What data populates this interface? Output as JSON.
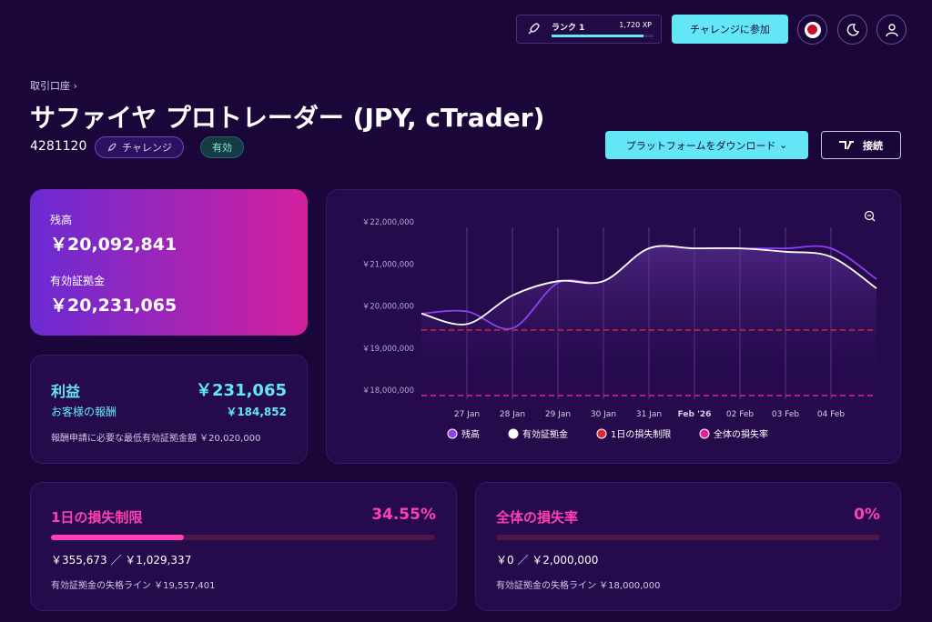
{
  "topbar": {
    "rank": "ランク 1",
    "xp": "1,720 XP",
    "join_button": "チャレンジに参加"
  },
  "header": {
    "breadcrumb": "取引口座",
    "title": "サファイヤ プロトレーダー (JPY, cTrader)",
    "account_id": "4281120",
    "tags": [
      "チャレンジ",
      "有効"
    ],
    "download_button": "プラットフォームをダウンロード",
    "connect_button": "接続"
  },
  "balance_card": {
    "balance_label": "残高",
    "balance": "￥20,092,841",
    "equity_label": "有効証拠金",
    "equity": "￥20,231,065"
  },
  "profit_card": {
    "profit_label": "利益",
    "profit": "￥231,065",
    "reward_label": "お客様の報酬",
    "reward": "￥184,852",
    "note": "報酬申請に必要な最低有効証拠金額 ￥20,020,000"
  },
  "chart": {
    "type": "line",
    "categories": [
      null,
      "27 Jan",
      "28 Jan",
      "29 Jan",
      "30 Jan",
      "31 Jan",
      "Feb '26",
      "02 Feb",
      "03 Feb",
      "04 Feb",
      null
    ],
    "series": [
      {
        "name": "残高",
        "color": "#8e3ff2",
        "values": [
          19950000,
          20000000,
          19600000,
          20680000,
          20720000,
          21500000,
          21500000,
          21500000,
          21500000,
          21500000,
          20770000
        ]
      },
      {
        "name": "有効証拠金",
        "color": "#ffffff",
        "values": [
          19950000,
          19700000,
          20380000,
          20720000,
          20720000,
          21500000,
          21500000,
          21500000,
          21420000,
          21300000,
          20550000
        ]
      }
    ],
    "limits": [
      {
        "name": "1日の損失制限",
        "color": "#e3283c",
        "value": 19557401
      },
      {
        "name": "全体の損失率",
        "color": "#e3219a",
        "value": 18000000
      }
    ],
    "ylim": [
      18000000,
      22000000
    ],
    "yticks": [
      {
        "value": 18000000,
        "label": "￥18,000,000"
      },
      {
        "value": 19000000,
        "label": "￥19,000,000"
      },
      {
        "value": 20000000,
        "label": "￥20,000,000"
      },
      {
        "value": 21000000,
        "label": "￥21,000,000"
      },
      {
        "value": 22000000,
        "label": "￥22,000,000"
      }
    ]
  },
  "loss_cards": [
    {
      "title": "1日の損失制限",
      "percent": 34.55,
      "percent_label": "34.55%",
      "amounts": "￥355,673 ／ ￥1,029,337",
      "line": "有効証拠金の失格ライン ￥19,557,401"
    },
    {
      "title": "全体の損失率",
      "percent": 0,
      "percent_label": "0%",
      "amounts": "￥0 ／ ￥2,000,000",
      "line": "有効証拠金の失格ライン ￥18,000,000"
    }
  ]
}
